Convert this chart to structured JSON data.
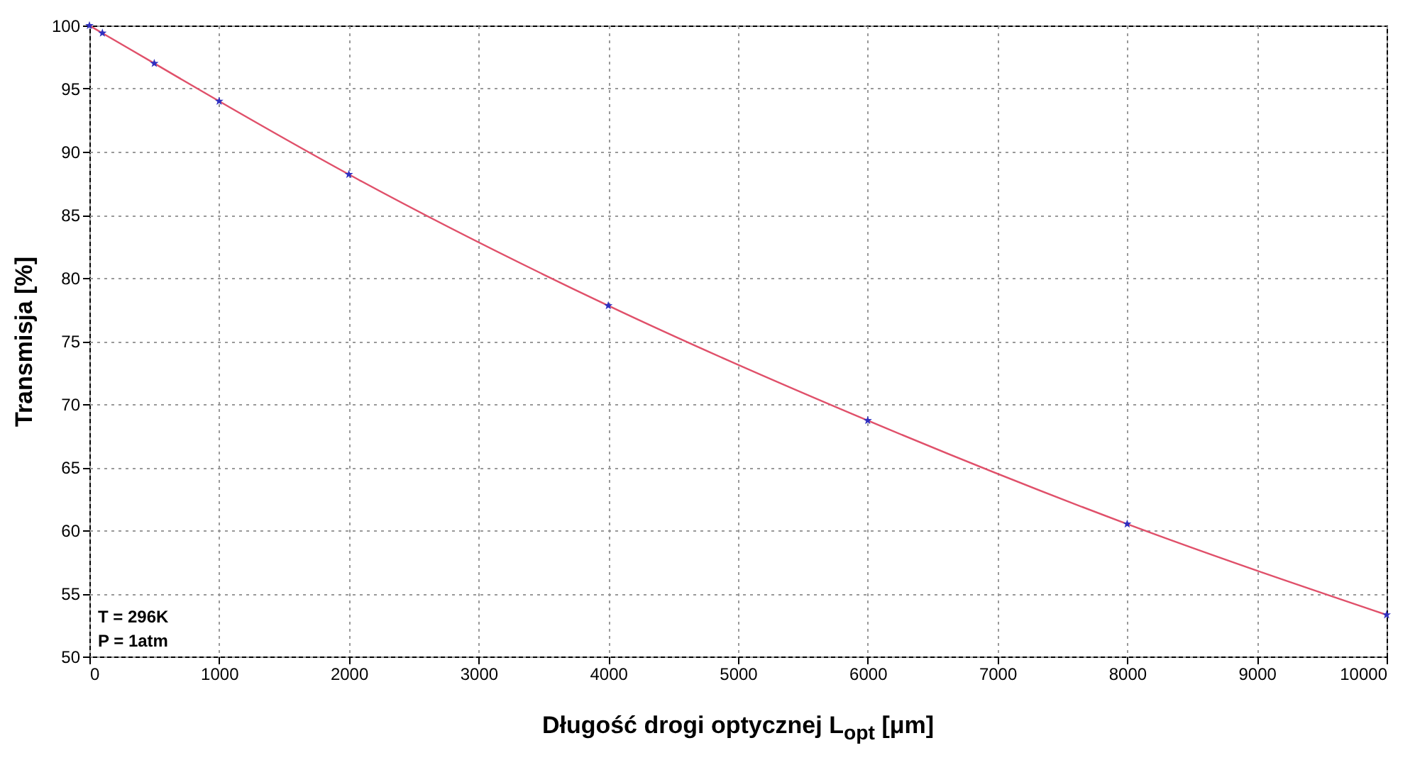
{
  "chart_data": {
    "type": "line",
    "xlabel": "Długość drogi optycznej L$_{opt}$ [μm]",
    "ylabel": "Transmisja [%]",
    "x": [
      0,
      100,
      500,
      1000,
      2000,
      4000,
      6000,
      8000,
      10000
    ],
    "series": [
      {
        "color": "#e0506a",
        "values": [
          100,
          99.4,
          97,
          94,
          88.2,
          77.8,
          68.7,
          60.5,
          53.3
        ]
      },
      {
        "type": "scatter",
        "color": "#3030c0",
        "marker": "star",
        "values": [
          100,
          99.4,
          97,
          94,
          88.2,
          77.8,
          68.7,
          60.5,
          53.3
        ]
      }
    ],
    "xlim": [
      0,
      10000
    ],
    "xticks": [
      0,
      1000,
      2000,
      3000,
      4000,
      5000,
      6000,
      7000,
      8000,
      9000,
      10000
    ],
    "ylim": [
      50,
      100
    ],
    "yticks": [
      50,
      55,
      60,
      65,
      70,
      75,
      80,
      85,
      90,
      95,
      100
    ],
    "grid": true,
    "annotations": [
      "T = 296K",
      "P = 1atm"
    ]
  }
}
